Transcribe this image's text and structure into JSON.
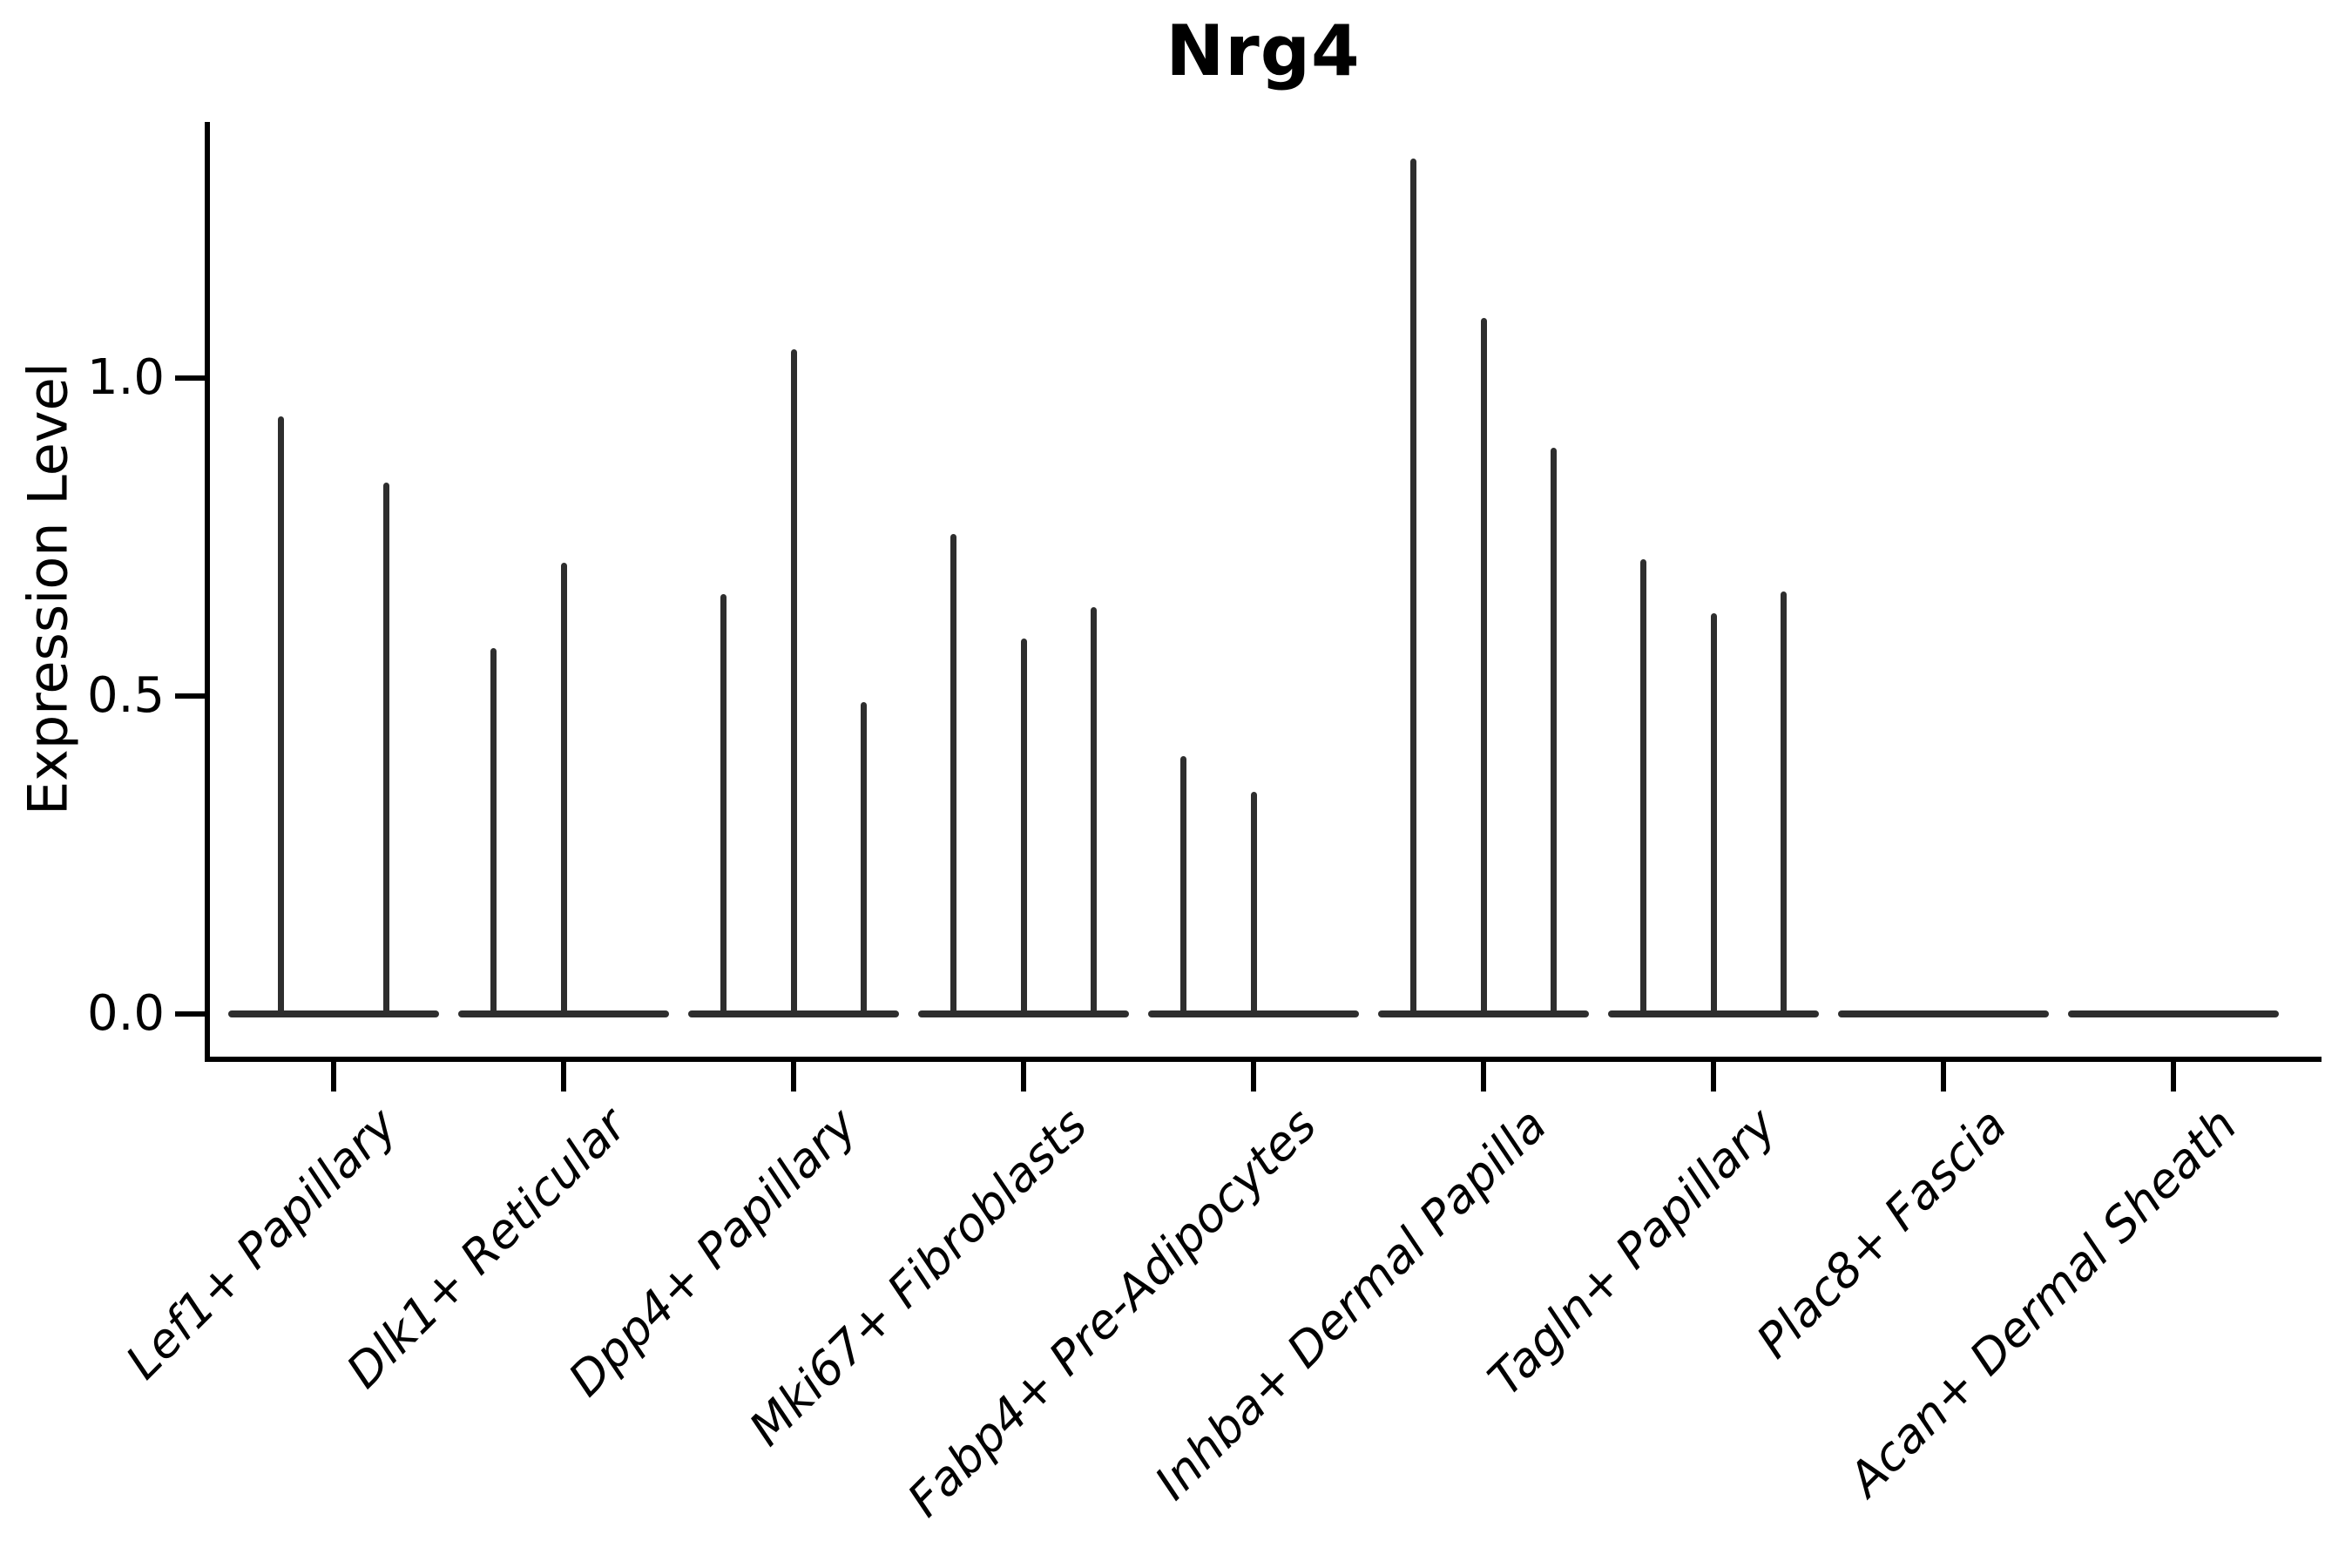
{
  "chart_data": {
    "type": "violin",
    "title": "Nrg4",
    "ylabel": "Expression Level",
    "xlabel": "",
    "yticks": [
      0.0,
      0.5,
      1.0
    ],
    "ylim": [
      0,
      1.4
    ],
    "grid": false,
    "legend": "none",
    "categories": [
      "Lef1+ Papillary",
      "Dlk1+ Reticular",
      "Dpp4+ Papillary",
      "Mki67+ Fibroblasts",
      "Fabp4+ Pre-Adipocytes",
      "Inhba+ Dermal Papilla",
      "Tagln+ Papillary",
      "Plac8+ Fascia",
      "Acan+ Dermal Sheath"
    ],
    "groups": [
      {
        "label": "Lef1+ Papillary",
        "violin_peaks": [
          0.94,
          0.835
        ]
      },
      {
        "label": "Dlk1+ Reticular",
        "violin_peaks": [
          0.575,
          0.71,
          0
        ]
      },
      {
        "label": "Dpp4+ Papillary",
        "violin_peaks": [
          0.66,
          1.045,
          0.49
        ]
      },
      {
        "label": "Mki67+ Fibroblasts",
        "violin_peaks": [
          0.755,
          0.59,
          0.64
        ]
      },
      {
        "label": "Fabp4+ Pre-Adipocytes",
        "violin_peaks": [
          0.405,
          0.35,
          0
        ]
      },
      {
        "label": "Inhba+ Dermal Papilla",
        "violin_peaks": [
          1.345,
          1.095,
          0.89
        ]
      },
      {
        "label": "Tagln+ Papillary",
        "violin_peaks": [
          0.715,
          0.63,
          0.665
        ]
      },
      {
        "label": "Plac8+ Fascia",
        "violin_peaks": [
          0,
          0,
          0
        ]
      },
      {
        "label": "Acan+ Dermal Sheath",
        "violin_peaks": [
          0,
          0,
          0
        ]
      }
    ],
    "colors": {
      "violin": "#2e2e2e",
      "spine": "#000000",
      "background": "#ffffff",
      "text": "#000000"
    }
  }
}
